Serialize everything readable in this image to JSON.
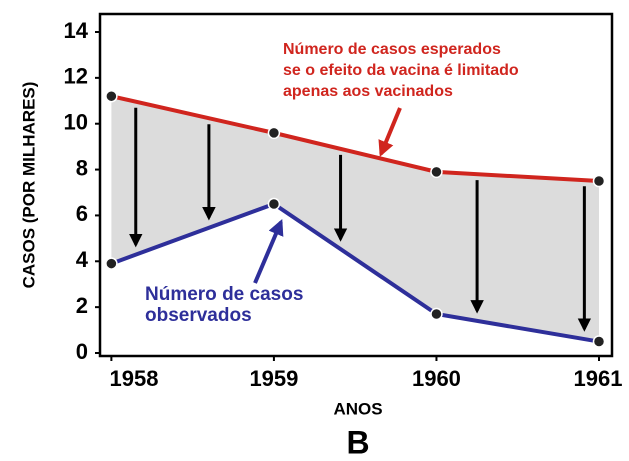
{
  "chart_data": {
    "type": "line",
    "y_label": "CASOS (POR MILHARES)",
    "x_label": "ANOS",
    "panel_label": "B",
    "x": [
      1958,
      1959,
      1960,
      1961
    ],
    "series": [
      {
        "name": [
          "Número de casos esperados",
          "se o efeito da vacina é limitado",
          "apenas aos vacinados"
        ],
        "color": "#d0251e",
        "values": [
          11.2,
          9.6,
          7.9,
          7.5
        ]
      },
      {
        "name": [
          "Número de casos",
          "observados"
        ],
        "color": "#2e2f9a",
        "values": [
          3.9,
          6.5,
          1.7,
          0.5
        ]
      }
    ],
    "xlim": [
      1957.93,
      1961.08
    ],
    "xticks": [
      1958,
      1959,
      1960,
      1961
    ],
    "ylim": [
      0,
      14
    ],
    "yticks": [
      0,
      2,
      4,
      6,
      8,
      10,
      12,
      14
    ]
  }
}
